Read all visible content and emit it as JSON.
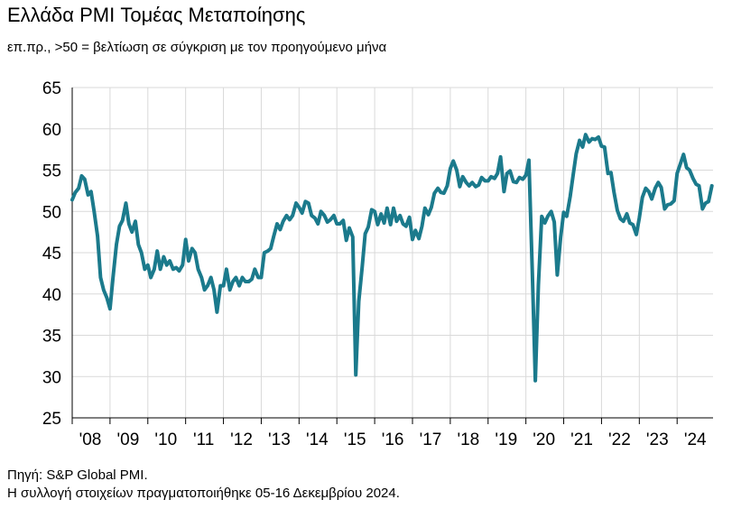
{
  "header": {
    "title": "Ελλάδα PMI Τομέας Μεταποίησης",
    "subtitle": "επ.πρ., >50 = βελτίωση σε σύγκριση με τον προηγούμενο μήνα"
  },
  "footer": {
    "source": "Πηγή: S&P Global PMI.",
    "note": "Η συλλογή στοιχείων πραγματοποιήθηκε 05-16 Δεκεμβρίου 2024."
  },
  "colors": {
    "line": "#1b7a8c",
    "grid": "#d9d9d9",
    "axis": "#000000"
  },
  "chart_data": {
    "type": "line",
    "ylim": [
      25,
      65
    ],
    "yticks": [
      25,
      30,
      35,
      40,
      45,
      50,
      55,
      60,
      65
    ],
    "xlim": [
      2008.0,
      2024.95
    ],
    "xticks": [
      {
        "x": 2008,
        "label": "'08"
      },
      {
        "x": 2009,
        "label": "'09"
      },
      {
        "x": 2010,
        "label": "'10"
      },
      {
        "x": 2011,
        "label": "'11"
      },
      {
        "x": 2012,
        "label": "'12"
      },
      {
        "x": 2013,
        "label": "'13"
      },
      {
        "x": 2014,
        "label": "'14"
      },
      {
        "x": 2015,
        "label": "'15"
      },
      {
        "x": 2016,
        "label": "'16"
      },
      {
        "x": 2017,
        "label": "'17"
      },
      {
        "x": 2018,
        "label": "'18"
      },
      {
        "x": 2019,
        "label": "'19"
      },
      {
        "x": 2020,
        "label": "'20"
      },
      {
        "x": 2021,
        "label": "'21"
      },
      {
        "x": 2022,
        "label": "'22"
      },
      {
        "x": 2023,
        "label": "'23"
      },
      {
        "x": 2024,
        "label": "'24"
      }
    ],
    "grid": true,
    "series": [
      {
        "points": [
          [
            2008.0,
            51.4
          ],
          [
            2008.08,
            52.3
          ],
          [
            2008.17,
            52.8
          ],
          [
            2008.25,
            54.3
          ],
          [
            2008.33,
            53.9
          ],
          [
            2008.42,
            52.0
          ],
          [
            2008.5,
            52.4
          ],
          [
            2008.58,
            50.0
          ],
          [
            2008.67,
            47.0
          ],
          [
            2008.75,
            42.0
          ],
          [
            2008.83,
            40.5
          ],
          [
            2008.92,
            39.5
          ],
          [
            2009.0,
            38.2
          ],
          [
            2009.08,
            42.0
          ],
          [
            2009.17,
            46.0
          ],
          [
            2009.25,
            48.2
          ],
          [
            2009.33,
            48.9
          ],
          [
            2009.42,
            51.0
          ],
          [
            2009.5,
            48.5
          ],
          [
            2009.58,
            47.5
          ],
          [
            2009.67,
            48.8
          ],
          [
            2009.75,
            46.0
          ],
          [
            2009.83,
            45.0
          ],
          [
            2009.92,
            43.0
          ],
          [
            2010.0,
            43.5
          ],
          [
            2010.08,
            42.0
          ],
          [
            2010.17,
            43.0
          ],
          [
            2010.25,
            45.2
          ],
          [
            2010.33,
            43.0
          ],
          [
            2010.42,
            44.5
          ],
          [
            2010.5,
            43.5
          ],
          [
            2010.58,
            44.0
          ],
          [
            2010.67,
            43.0
          ],
          [
            2010.75,
            43.2
          ],
          [
            2010.83,
            42.8
          ],
          [
            2010.92,
            43.5
          ],
          [
            2011.0,
            46.6
          ],
          [
            2011.08,
            44.0
          ],
          [
            2011.17,
            45.5
          ],
          [
            2011.25,
            45.0
          ],
          [
            2011.33,
            43.0
          ],
          [
            2011.42,
            42.0
          ],
          [
            2011.5,
            40.5
          ],
          [
            2011.58,
            41.0
          ],
          [
            2011.67,
            42.0
          ],
          [
            2011.75,
            40.5
          ],
          [
            2011.83,
            37.8
          ],
          [
            2011.92,
            41.0
          ],
          [
            2012.0,
            41.0
          ],
          [
            2012.08,
            43.0
          ],
          [
            2012.17,
            40.5
          ],
          [
            2012.25,
            41.5
          ],
          [
            2012.33,
            42.0
          ],
          [
            2012.42,
            41.0
          ],
          [
            2012.5,
            42.0
          ],
          [
            2012.58,
            41.5
          ],
          [
            2012.67,
            41.5
          ],
          [
            2012.75,
            41.8
          ],
          [
            2012.83,
            43.0
          ],
          [
            2012.92,
            42.0
          ],
          [
            2013.0,
            42.0
          ],
          [
            2013.08,
            45.0
          ],
          [
            2013.17,
            45.2
          ],
          [
            2013.25,
            45.5
          ],
          [
            2013.33,
            47.0
          ],
          [
            2013.42,
            48.5
          ],
          [
            2013.5,
            47.8
          ],
          [
            2013.58,
            48.8
          ],
          [
            2013.67,
            49.5
          ],
          [
            2013.75,
            49.0
          ],
          [
            2013.83,
            49.5
          ],
          [
            2013.92,
            51.0
          ],
          [
            2014.0,
            50.5
          ],
          [
            2014.08,
            49.8
          ],
          [
            2014.17,
            51.2
          ],
          [
            2014.25,
            51.0
          ],
          [
            2014.33,
            49.5
          ],
          [
            2014.42,
            49.2
          ],
          [
            2014.5,
            48.5
          ],
          [
            2014.58,
            50.0
          ],
          [
            2014.67,
            49.5
          ],
          [
            2014.75,
            48.7
          ],
          [
            2014.83,
            49.0
          ],
          [
            2014.92,
            49.5
          ],
          [
            2015.0,
            48.5
          ],
          [
            2015.08,
            48.5
          ],
          [
            2015.17,
            48.9
          ],
          [
            2015.25,
            46.5
          ],
          [
            2015.33,
            48.0
          ],
          [
            2015.42,
            46.9
          ],
          [
            2015.5,
            30.2
          ],
          [
            2015.58,
            39.1
          ],
          [
            2015.67,
            43.3
          ],
          [
            2015.75,
            47.3
          ],
          [
            2015.83,
            48.1
          ],
          [
            2015.92,
            50.2
          ],
          [
            2016.0,
            50.0
          ],
          [
            2016.08,
            48.4
          ],
          [
            2016.17,
            49.7
          ],
          [
            2016.25,
            48.6
          ],
          [
            2016.33,
            50.4
          ],
          [
            2016.42,
            48.4
          ],
          [
            2016.5,
            50.4
          ],
          [
            2016.58,
            48.8
          ],
          [
            2016.67,
            49.5
          ],
          [
            2016.75,
            48.5
          ],
          [
            2016.83,
            48.2
          ],
          [
            2016.92,
            49.3
          ],
          [
            2017.0,
            46.6
          ],
          [
            2017.08,
            47.7
          ],
          [
            2017.17,
            46.7
          ],
          [
            2017.25,
            48.2
          ],
          [
            2017.33,
            50.4
          ],
          [
            2017.42,
            49.6
          ],
          [
            2017.5,
            50.5
          ],
          [
            2017.58,
            52.2
          ],
          [
            2017.67,
            52.8
          ],
          [
            2017.75,
            52.3
          ],
          [
            2017.83,
            52.2
          ],
          [
            2017.92,
            53.1
          ],
          [
            2018.0,
            55.2
          ],
          [
            2018.08,
            56.1
          ],
          [
            2018.17,
            55.0
          ],
          [
            2018.25,
            53.0
          ],
          [
            2018.33,
            54.2
          ],
          [
            2018.42,
            53.5
          ],
          [
            2018.5,
            53.1
          ],
          [
            2018.58,
            53.5
          ],
          [
            2018.67,
            53.0
          ],
          [
            2018.75,
            53.2
          ],
          [
            2018.83,
            54.1
          ],
          [
            2018.92,
            53.7
          ],
          [
            2019.0,
            53.7
          ],
          [
            2019.08,
            54.2
          ],
          [
            2019.17,
            54.0
          ],
          [
            2019.25,
            54.6
          ],
          [
            2019.33,
            56.6
          ],
          [
            2019.42,
            52.4
          ],
          [
            2019.5,
            54.6
          ],
          [
            2019.58,
            54.9
          ],
          [
            2019.67,
            53.6
          ],
          [
            2019.75,
            53.5
          ],
          [
            2019.83,
            54.1
          ],
          [
            2019.92,
            53.9
          ],
          [
            2020.0,
            54.4
          ],
          [
            2020.08,
            56.2
          ],
          [
            2020.17,
            42.5
          ],
          [
            2020.25,
            29.5
          ],
          [
            2020.33,
            41.1
          ],
          [
            2020.42,
            49.4
          ],
          [
            2020.5,
            48.6
          ],
          [
            2020.58,
            49.4
          ],
          [
            2020.67,
            50.0
          ],
          [
            2020.75,
            48.7
          ],
          [
            2020.83,
            42.3
          ],
          [
            2020.92,
            46.9
          ],
          [
            2021.0,
            49.9
          ],
          [
            2021.08,
            49.4
          ],
          [
            2021.17,
            51.8
          ],
          [
            2021.25,
            54.4
          ],
          [
            2021.33,
            57.0
          ],
          [
            2021.42,
            58.6
          ],
          [
            2021.5,
            57.8
          ],
          [
            2021.58,
            59.3
          ],
          [
            2021.67,
            58.4
          ],
          [
            2021.75,
            58.8
          ],
          [
            2021.83,
            58.7
          ],
          [
            2021.92,
            59.0
          ],
          [
            2022.0,
            57.9
          ],
          [
            2022.08,
            57.8
          ],
          [
            2022.17,
            54.6
          ],
          [
            2022.25,
            54.7
          ],
          [
            2022.33,
            52.3
          ],
          [
            2022.42,
            50.1
          ],
          [
            2022.5,
            49.1
          ],
          [
            2022.58,
            48.8
          ],
          [
            2022.67,
            49.7
          ],
          [
            2022.75,
            48.6
          ],
          [
            2022.83,
            48.4
          ],
          [
            2022.92,
            47.2
          ],
          [
            2023.0,
            49.2
          ],
          [
            2023.08,
            51.7
          ],
          [
            2023.17,
            52.8
          ],
          [
            2023.25,
            52.4
          ],
          [
            2023.33,
            51.5
          ],
          [
            2023.42,
            52.8
          ],
          [
            2023.5,
            53.5
          ],
          [
            2023.58,
            52.9
          ],
          [
            2023.67,
            50.3
          ],
          [
            2023.75,
            50.8
          ],
          [
            2023.83,
            50.9
          ],
          [
            2023.92,
            51.3
          ],
          [
            2024.0,
            54.6
          ],
          [
            2024.08,
            55.7
          ],
          [
            2024.17,
            56.9
          ],
          [
            2024.25,
            55.3
          ],
          [
            2024.33,
            55.0
          ],
          [
            2024.42,
            54.0
          ],
          [
            2024.5,
            53.3
          ],
          [
            2024.58,
            53.1
          ],
          [
            2024.67,
            50.3
          ],
          [
            2024.75,
            51.0
          ],
          [
            2024.83,
            51.2
          ],
          [
            2024.92,
            53.1
          ]
        ]
      }
    ]
  }
}
